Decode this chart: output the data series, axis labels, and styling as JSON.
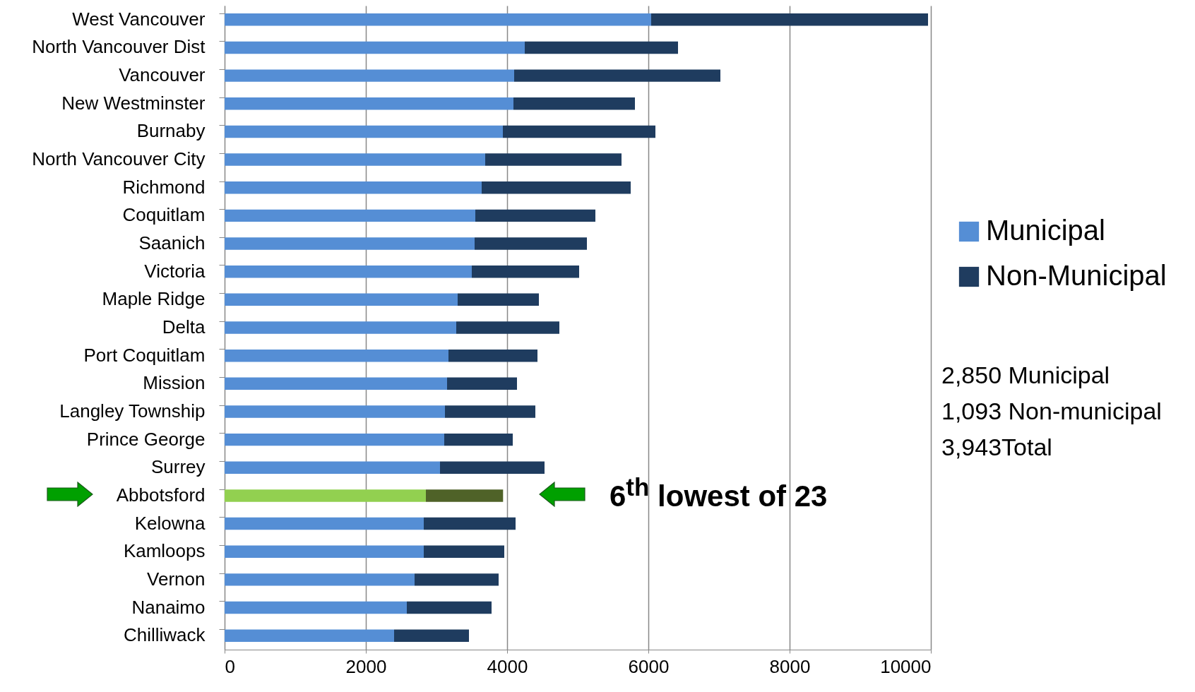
{
  "chart_data": {
    "type": "bar",
    "orientation": "horizontal",
    "stacked": true,
    "categories": [
      "West Vancouver",
      "North Vancouver Dist",
      "Vancouver",
      "New Westminster",
      "Burnaby",
      "North Vancouver City",
      "Richmond",
      "Coquitlam",
      "Saanich",
      "Victoria",
      "Maple Ridge",
      "Delta",
      "Port Coquitlam",
      "Mission",
      "Langley Township",
      "Prince George",
      "Surrey",
      "Abbotsford",
      "Kelowna",
      "Kamloops",
      "Vernon",
      "Nanaimo",
      "Chilliwack"
    ],
    "series": [
      {
        "name": "Municipal",
        "color": "#558ed5",
        "colors": [
          "#558ed5",
          "#558ed5",
          "#558ed5",
          "#558ed5",
          "#558ed5",
          "#558ed5",
          "#558ed5",
          "#558ed5",
          "#558ed5",
          "#558ed5",
          "#558ed5",
          "#558ed5",
          "#558ed5",
          "#558ed5",
          "#558ed5",
          "#558ed5",
          "#558ed5",
          "#92d050",
          "#558ed5",
          "#558ed5",
          "#558ed5",
          "#558ed5",
          "#558ed5"
        ],
        "values": [
          6040,
          4250,
          4100,
          4090,
          3940,
          3690,
          3640,
          3550,
          3540,
          3500,
          3300,
          3280,
          3170,
          3150,
          3120,
          3110,
          3050,
          2850,
          2820,
          2820,
          2690,
          2580,
          2400
        ]
      },
      {
        "name": "Non-Municipal",
        "color": "#1f3c5f",
        "colors": [
          "#1f3c5f",
          "#1f3c5f",
          "#1f3c5f",
          "#1f3c5f",
          "#1f3c5f",
          "#1f3c5f",
          "#1f3c5f",
          "#1f3c5f",
          "#1f3c5f",
          "#1f3c5f",
          "#1f3c5f",
          "#1f3c5f",
          "#1f3c5f",
          "#1f3c5f",
          "#1f3c5f",
          "#1f3c5f",
          "#1f3c5f",
          "#4f6228",
          "#1f3c5f",
          "#1f3c5f",
          "#1f3c5f",
          "#1f3c5f",
          "#1f3c5f"
        ],
        "values": [
          3920,
          2170,
          2920,
          1720,
          2160,
          1930,
          2110,
          1700,
          1590,
          1520,
          1150,
          1460,
          1260,
          990,
          1280,
          970,
          1480,
          1093,
          1300,
          1140,
          1190,
          1200,
          1060
        ]
      }
    ],
    "xlim": [
      0,
      10000
    ],
    "xticks": [
      0,
      2000,
      4000,
      6000,
      8000,
      10000
    ],
    "grid": "x",
    "legend": "right",
    "annotations": [
      "6$^{th}$ lowest of 23",
      "2,850 Municipal",
      "1,093 Non-municipal",
      "3,943Total"
    ]
  }
}
